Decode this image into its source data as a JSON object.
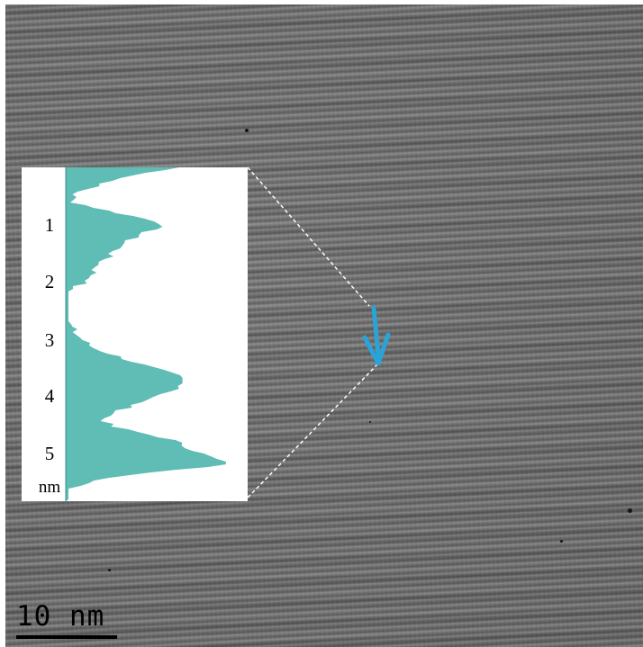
{
  "figure": {
    "inset": {
      "tick_labels": [
        "1",
        "2",
        "3",
        "4",
        "5"
      ],
      "unit_label": "nm",
      "fill_color": "#5fbdb5"
    },
    "marker": {
      "icon": "arrow-down-icon",
      "color": "#2aa3d8"
    },
    "scalebar": {
      "label": "10 nm"
    }
  }
}
